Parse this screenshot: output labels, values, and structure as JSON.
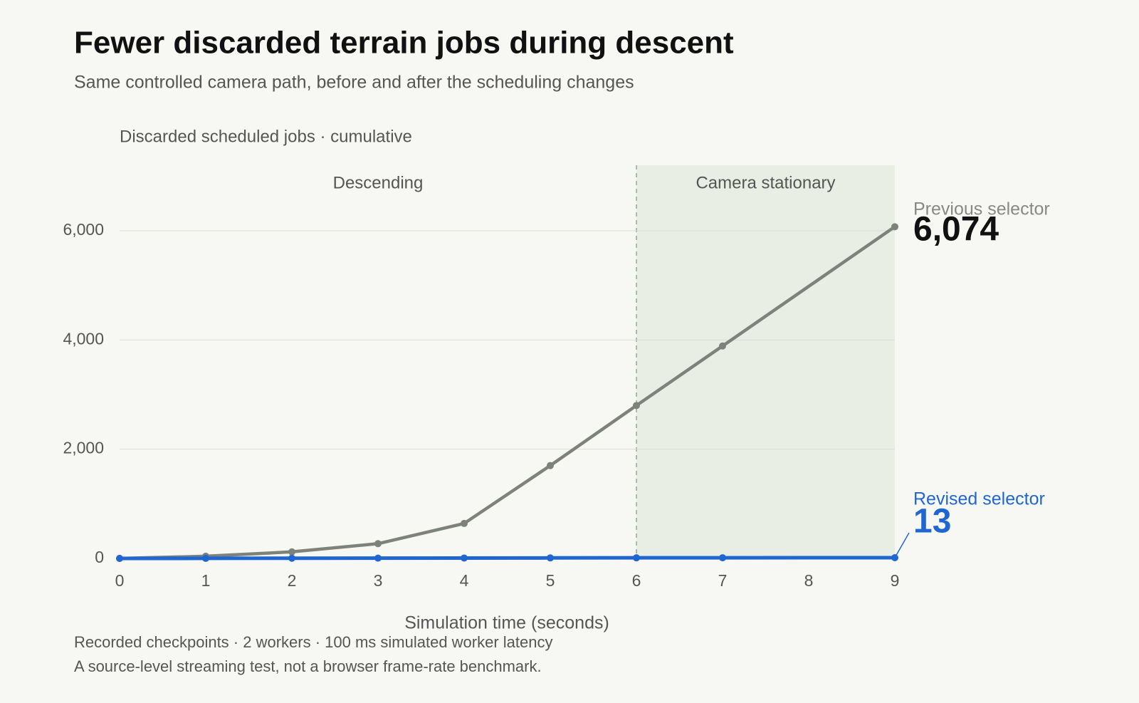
{
  "chart_data": {
    "type": "line",
    "title": "Fewer discarded terrain jobs during descent",
    "subtitle": "Same controlled camera path, before and after the scheduling changes",
    "y_axis_label": "Discarded scheduled jobs · cumulative",
    "x_axis_label": "Simulation time (seconds)",
    "footnotes": [
      "Recorded checkpoints · 2 workers · 100 ms simulated worker latency",
      "A source-level streaming test, not a browser frame-rate benchmark."
    ],
    "x": [
      0,
      1,
      2,
      3,
      4,
      5,
      6,
      7,
      9
    ],
    "series": [
      {
        "name": "Previous selector",
        "color": "#7d837b",
        "values": [
          0,
          40,
          120,
          270,
          640,
          1700,
          2800,
          3890,
          6074
        ],
        "value_labels": [
          null,
          null,
          null,
          null,
          null,
          null,
          null,
          null,
          "6,074"
        ],
        "label_color": "#111111"
      },
      {
        "name": "Revised selector",
        "color": "#1f66d1",
        "values": [
          0,
          1,
          3,
          5,
          7,
          9,
          11,
          12,
          13
        ],
        "value_labels": [
          null,
          null,
          null,
          null,
          null,
          null,
          null,
          null,
          "13"
        ],
        "label_color": "#1f66d1"
      }
    ],
    "regions": [
      {
        "label": "Descending",
        "start": 0,
        "end": 6,
        "shaded": false
      },
      {
        "label": "Camera stationary",
        "start": 6,
        "end": 9,
        "shaded": true,
        "color": "#e8eee3"
      }
    ],
    "xlim": [
      0,
      9
    ],
    "xticks": [
      0,
      1,
      2,
      3,
      4,
      5,
      6,
      7,
      8,
      9
    ],
    "ylim": [
      0,
      7200
    ],
    "yticks": [
      0,
      {
        "value": 2000,
        "label": "2,000"
      },
      {
        "value": 4000,
        "label": "4,000"
      },
      {
        "value": 6000,
        "label": "6,000"
      }
    ],
    "grid": true
  }
}
